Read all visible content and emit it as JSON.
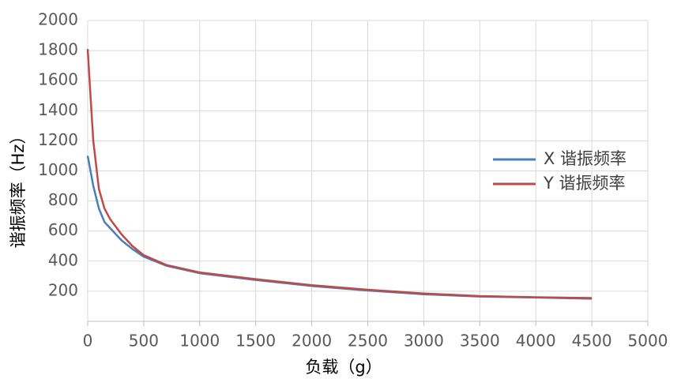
{
  "chart_data": {
    "type": "line",
    "xlabel": "负载（g）",
    "ylabel": "谐振频率（Hz）",
    "xlim": [
      0,
      5000
    ],
    "xticks": [
      0,
      500,
      1000,
      1500,
      2000,
      2500,
      3000,
      3500,
      4000,
      4500,
      5000
    ],
    "ylim": [
      0,
      2000
    ],
    "yticks": [
      200,
      400,
      600,
      800,
      1000,
      1200,
      1400,
      1600,
      1800,
      2000
    ],
    "grid": true,
    "legend": "right",
    "series": [
      {
        "name": "X 谐振频率",
        "color": "#4a7ebb",
        "x": [
          0,
          50,
          100,
          150,
          200,
          300,
          400,
          500,
          700,
          1000,
          1500,
          2000,
          2500,
          3000,
          3500,
          4000,
          4500
        ],
        "values": [
          1100,
          900,
          750,
          660,
          620,
          540,
          480,
          430,
          370,
          320,
          275,
          235,
          205,
          180,
          165,
          158,
          150
        ]
      },
      {
        "name": "Y 谐振频率",
        "color": "#be4b48",
        "x": [
          0,
          25,
          50,
          100,
          150,
          200,
          300,
          400,
          500,
          700,
          1000,
          1500,
          2000,
          2500,
          3000,
          3500,
          4000,
          4500
        ],
        "values": [
          1810,
          1500,
          1200,
          880,
          750,
          680,
          580,
          500,
          440,
          375,
          325,
          280,
          240,
          210,
          185,
          168,
          160,
          155
        ]
      }
    ]
  }
}
